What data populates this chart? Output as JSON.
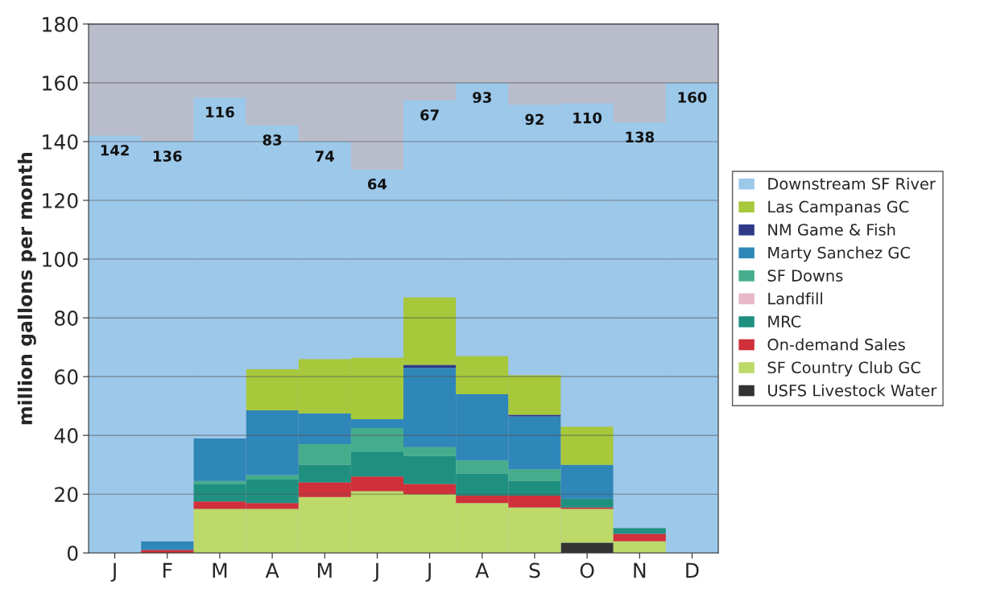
{
  "chart_data": {
    "type": "bar",
    "stacked": true,
    "ylabel": "million gallons per month",
    "categories": [
      "J",
      "F",
      "M",
      "A",
      "M",
      "J",
      "J",
      "A",
      "S",
      "O",
      "N",
      "D"
    ],
    "ylim": [
      0,
      180
    ],
    "yticks": [
      0,
      20,
      40,
      60,
      80,
      100,
      120,
      140,
      160,
      180
    ],
    "grid": "y",
    "legend": "right",
    "series": [
      {
        "name": "USFS Livestock Water",
        "color": "#333333",
        "values": [
          0,
          0,
          0,
          0,
          0,
          0,
          0,
          0,
          0,
          3.5,
          0,
          0
        ]
      },
      {
        "name": "SF Country Club GC",
        "color": "#bcd96a",
        "values": [
          0,
          0,
          15,
          15,
          19,
          21,
          20,
          17,
          15.5,
          11.5,
          4,
          0
        ]
      },
      {
        "name": "On-demand Sales",
        "color": "#d0303a",
        "values": [
          0,
          1,
          2.5,
          2,
          5,
          5,
          3.5,
          2.5,
          4,
          0.5,
          2.5,
          0
        ]
      },
      {
        "name": "MRC",
        "color": "#1f9080",
        "values": [
          0,
          0,
          6,
          8,
          6,
          8.5,
          9.5,
          7.5,
          5,
          3,
          2,
          0
        ]
      },
      {
        "name": "Landfill",
        "color": "#e6b8c8",
        "values": [
          0,
          0,
          0,
          0,
          0,
          0,
          0,
          0,
          0,
          0,
          0,
          0
        ]
      },
      {
        "name": "SF Downs",
        "color": "#45ad8c",
        "values": [
          0,
          0,
          1,
          1.5,
          7,
          8,
          3,
          4.5,
          4,
          0,
          0,
          0
        ]
      },
      {
        "name": "Marty Sanchez GC",
        "color": "#2f86b8",
        "values": [
          0,
          3,
          14.5,
          22,
          10.5,
          3,
          27,
          22.5,
          18,
          11.5,
          0,
          0
        ]
      },
      {
        "name": "NM Game & Fish",
        "color": "#2e3a87",
        "values": [
          0,
          0,
          0,
          0,
          0,
          0,
          1,
          0,
          0.5,
          0,
          0,
          0
        ]
      },
      {
        "name": "Las Campanas GC",
        "color": "#a6c83a",
        "values": [
          0,
          0,
          0,
          14,
          18.5,
          21,
          23,
          13,
          13.5,
          13,
          0,
          0
        ]
      },
      {
        "name": "Downstream SF River",
        "color": "#9cc8ea",
        "values": [
          142,
          136,
          116,
          83,
          74,
          64,
          67,
          93,
          92,
          110,
          138,
          160
        ],
        "value_labels": [
          "142",
          "136",
          "116",
          "83",
          "74",
          "64",
          "67",
          "93",
          "92",
          "110",
          "138",
          "160"
        ]
      }
    ]
  }
}
